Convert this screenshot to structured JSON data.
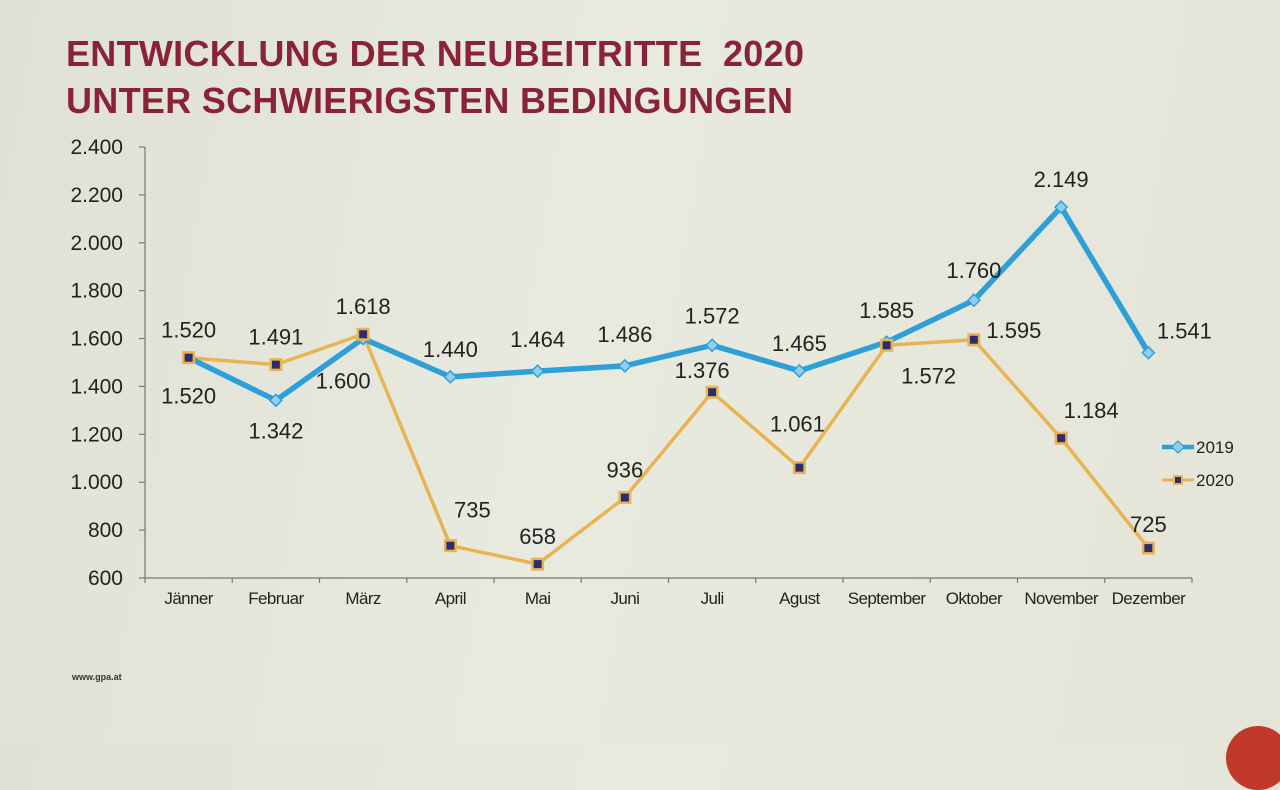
{
  "title": {
    "line1": "ENTWICKLUNG DER NEUBEITRITTE  2020",
    "line2": "UNTER SCHWIERIGSTEN BEDINGUNGEN"
  },
  "footer": "www.gpa.at",
  "colors": {
    "title": "#8a2338",
    "s2019": "#2f9fd8",
    "s2020": "#e8b451",
    "marker2020": "#2e2c6e"
  },
  "chart_data": {
    "type": "line",
    "categories": [
      "Jänner",
      "Februar",
      "März",
      "April",
      "Mai",
      "Juni",
      "Juli",
      "Agust",
      "September",
      "Oktober",
      "November",
      "Dezember"
    ],
    "ylim": [
      600,
      2400
    ],
    "yticks": [
      "600",
      "800",
      "1.000",
      "1.200",
      "1.400",
      "1.600",
      "1.800",
      "2.000",
      "2.200",
      "2.400"
    ],
    "legend_position": "right",
    "grid": false,
    "series": [
      {
        "name": "2019",
        "values": [
          1520,
          1342,
          1600,
          1440,
          1464,
          1486,
          1572,
          1465,
          1585,
          1760,
          2149,
          1541
        ],
        "labels": [
          "1.520",
          "1.342",
          "1.600",
          "1.440",
          "1.464",
          "1.486",
          "1.572",
          "1.465",
          "1.585",
          "1.760",
          "2.149",
          "1.541"
        ]
      },
      {
        "name": "2020",
        "values": [
          1520,
          1491,
          1618,
          735,
          658,
          936,
          1376,
          1061,
          1572,
          1595,
          1184,
          725
        ],
        "labels": [
          "1.520",
          "1.491",
          "1.618",
          "735",
          "658",
          "936",
          "1.376",
          "1.061",
          "1.572",
          "1.595",
          "1.184",
          "725"
        ]
      }
    ]
  }
}
